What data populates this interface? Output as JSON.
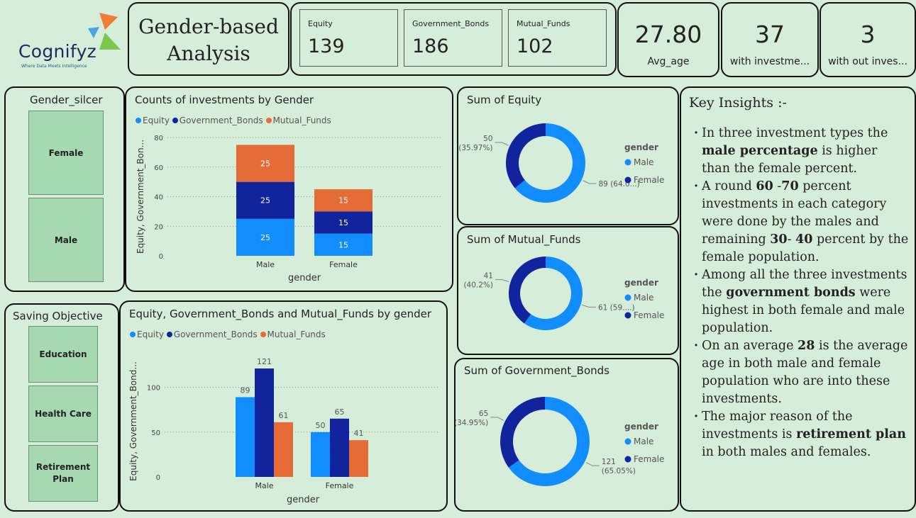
{
  "brand": {
    "name": "Cognifyz",
    "tagline": "Where Data Meets Intelligence"
  },
  "title": {
    "line1": "Gender-based",
    "line2": "Analysis"
  },
  "kpis": [
    {
      "label": "Equity",
      "value": "139"
    },
    {
      "label": "Government_Bonds",
      "value": "186"
    },
    {
      "label": "Mutual_Funds",
      "value": "102"
    }
  ],
  "big_cards": [
    {
      "value": "27.80",
      "caption": "Avg_age"
    },
    {
      "value": "37",
      "caption": "with investme..."
    },
    {
      "value": "3",
      "caption": "with out inves..."
    }
  ],
  "gender_slicer": {
    "title": "Gender_silcer",
    "options": [
      "Female",
      "Male"
    ]
  },
  "saving_slicer": {
    "title": "Saving Objective",
    "options": [
      "Education",
      "Health Care",
      "Retirement Plan"
    ]
  },
  "colors": {
    "equity": "#118dff",
    "government_bonds": "#12239e",
    "mutual_funds": "#e66c37",
    "background": "#d6edd9"
  },
  "legend_labels": {
    "equity": "Equity",
    "government_bonds": "Government_Bonds",
    "mutual_funds": "Mutual_Funds",
    "gender": "gender",
    "male": "Male",
    "female": "Female"
  },
  "chart_data": [
    {
      "id": "stacked",
      "type": "bar",
      "stacked": true,
      "title": "Counts of investments by Gender",
      "categories": [
        "Male",
        "Female"
      ],
      "series": [
        {
          "name": "Equity",
          "values": [
            25,
            15
          ]
        },
        {
          "name": "Government_Bonds",
          "values": [
            25,
            15
          ]
        },
        {
          "name": "Mutual_Funds",
          "values": [
            25,
            15
          ]
        }
      ],
      "xlabel": "gender",
      "ylabel": "Equity, Government_Bon...",
      "ylim": [
        0,
        80
      ],
      "yticks": [
        0,
        20,
        40,
        60,
        80
      ],
      "legend": "top-left"
    },
    {
      "id": "clustered",
      "type": "bar",
      "title": "Equity, Government_Bonds and Mutual_Funds by gender",
      "categories": [
        "Male",
        "Female"
      ],
      "series": [
        {
          "name": "Equity",
          "values": [
            89,
            50
          ]
        },
        {
          "name": "Government_Bonds",
          "values": [
            121,
            65
          ]
        },
        {
          "name": "Mutual_Funds",
          "values": [
            61,
            41
          ]
        }
      ],
      "xlabel": "gender",
      "ylabel": "Equity, Government_Bond...",
      "ylim": [
        0,
        140
      ],
      "yticks": [
        0,
        50,
        100
      ],
      "legend": "top-left"
    },
    {
      "id": "donut_equity",
      "type": "pie",
      "title": "Sum of Equity",
      "slices": [
        {
          "name": "Male",
          "value": 89,
          "label": "89 (64.0...)"
        },
        {
          "name": "Female",
          "value": 50,
          "label_line1": "50",
          "label_line2": "(35.97%)"
        }
      ],
      "legend_title": "gender"
    },
    {
      "id": "donut_mutual",
      "type": "pie",
      "title": "Sum of Mutual_Funds",
      "slices": [
        {
          "name": "Male",
          "value": 61,
          "label": "61 (59....)"
        },
        {
          "name": "Female",
          "value": 41,
          "label_line1": "41",
          "label_line2": "(40.2%)"
        }
      ],
      "legend_title": "gender"
    },
    {
      "id": "donut_gov",
      "type": "pie",
      "title": "Sum of Government_Bonds",
      "slices": [
        {
          "name": "Male",
          "value": 121,
          "label_line1": "121",
          "label_line2": "(65.05%)"
        },
        {
          "name": "Female",
          "value": 65,
          "label_line1": "65",
          "label_line2": "(34.95%)"
        }
      ],
      "legend_title": "gender"
    }
  ],
  "insights": {
    "title": "Key Insights :-",
    "items": [
      [
        {
          "t": "In three investment types the "
        },
        {
          "t": "male percentage",
          "b": true
        },
        {
          "t": " is higher than the female percent."
        }
      ],
      [
        {
          "t": "A round "
        },
        {
          "t": "60",
          "b": true
        },
        {
          "t": " -"
        },
        {
          "t": "70",
          "b": true
        },
        {
          "t": " percent investments in each category were done by the males and remaining  "
        },
        {
          "t": "30",
          "b": true
        },
        {
          "t": "- "
        },
        {
          "t": "40",
          "b": true
        },
        {
          "t": " percent by the female population."
        }
      ],
      [
        {
          "t": "Among all the three investments the "
        },
        {
          "t": "government bonds",
          "b": true
        },
        {
          "t": " were highest in both female and male population."
        }
      ],
      [
        {
          "t": "On an average "
        },
        {
          "t": "28",
          "b": true
        },
        {
          "t": " is the average age in both male and female population who are into these investments."
        }
      ],
      [
        {
          "t": "The major reason of the investments is "
        },
        {
          "t": "retirement plan",
          "b": true
        },
        {
          "t": " in both males and females."
        }
      ]
    ]
  }
}
